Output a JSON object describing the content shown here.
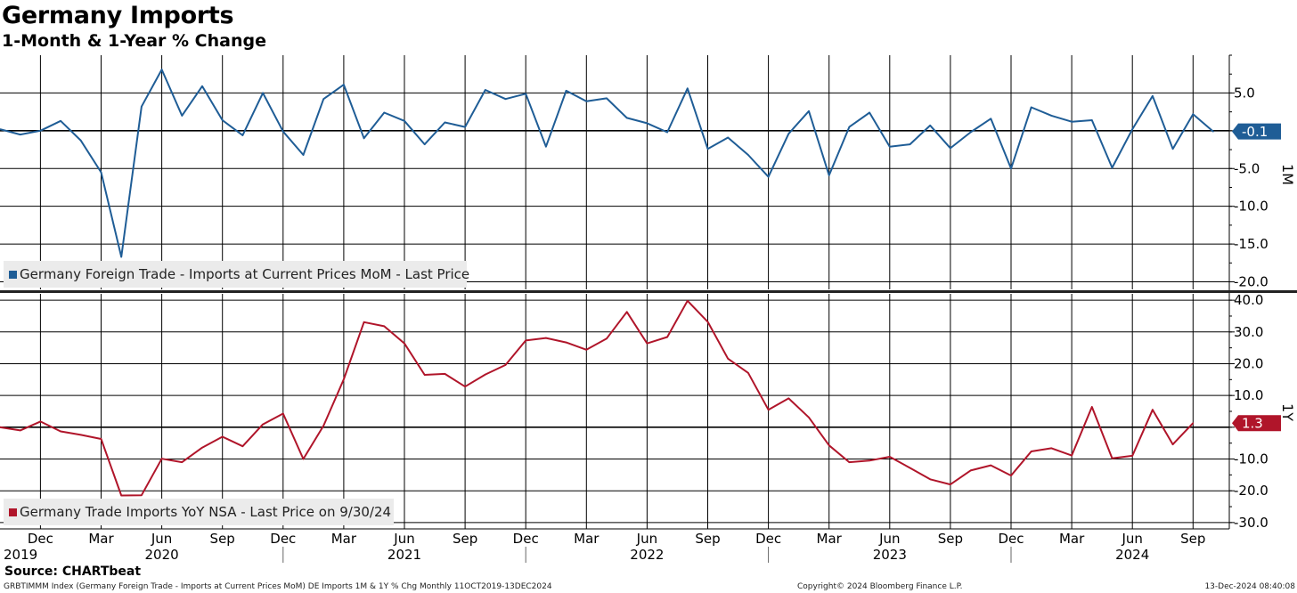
{
  "header": {
    "title": "Germany Imports",
    "subtitle": "1-Month & 1-Year % Change",
    "source": "Source: CHARTbeat"
  },
  "footer": {
    "left": "GRBTIMMM Index (Germany Foreign Trade - Imports at Current Prices MoM) DE Imports 1M & 1Y % Chg  Monthly 11OCT2019-13DEC2024",
    "middle": "Copyright© 2024 Bloomberg Finance L.P.",
    "right": "13-Dec-2024 08:40:08"
  },
  "colors": {
    "mom": "#1f5d96",
    "yoy": "#b0152a",
    "grid": "#000000",
    "legend_bg": "#ebebeb"
  },
  "chart_data": [
    {
      "type": "line",
      "axis_name": "1M",
      "ylim": [
        -21,
        10
      ],
      "yticks": [
        5,
        0,
        -5,
        -10,
        -15,
        -20
      ],
      "ytick_labels": [
        "5.0",
        "",
        "-5.0",
        "-10.0",
        "-15.0",
        "-20.0"
      ],
      "last_value_label": "-0.1",
      "grid": true,
      "legend_position": "bottom-left",
      "series": [
        {
          "name": "Germany Foreign Trade - Imports at Current Prices MoM - Last Price",
          "x": [
            "2019-10",
            "2019-11",
            "2019-12",
            "2020-01",
            "2020-02",
            "2020-03",
            "2020-04",
            "2020-05",
            "2020-06",
            "2020-07",
            "2020-08",
            "2020-09",
            "2020-10",
            "2020-11",
            "2020-12",
            "2021-01",
            "2021-02",
            "2021-03",
            "2021-04",
            "2021-05",
            "2021-06",
            "2021-07",
            "2021-08",
            "2021-09",
            "2021-10",
            "2021-11",
            "2021-12",
            "2022-01",
            "2022-02",
            "2022-03",
            "2022-04",
            "2022-05",
            "2022-06",
            "2022-07",
            "2022-08",
            "2022-09",
            "2022-10",
            "2022-11",
            "2022-12",
            "2023-01",
            "2023-02",
            "2023-03",
            "2023-04",
            "2023-05",
            "2023-06",
            "2023-07",
            "2023-08",
            "2023-09",
            "2023-10",
            "2023-11",
            "2023-12",
            "2024-01",
            "2024-02",
            "2024-03",
            "2024-04",
            "2024-05",
            "2024-06",
            "2024-07",
            "2024-08",
            "2024-09",
            "2024-10"
          ],
          "values": [
            0.2,
            -0.5,
            0.0,
            1.3,
            -1.3,
            -5.5,
            -16.7,
            3.2,
            8.1,
            2.0,
            5.9,
            1.4,
            -0.6,
            5.0,
            -0.1,
            -3.2,
            4.2,
            6.1,
            -1.0,
            2.4,
            1.3,
            -1.8,
            1.1,
            0.5,
            5.4,
            4.2,
            4.9,
            -2.1,
            5.3,
            3.9,
            4.3,
            1.7,
            1.0,
            -0.2,
            5.6,
            -2.4,
            -0.9,
            -3.2,
            -6.1,
            -0.4,
            2.6,
            -5.9,
            0.5,
            2.4,
            -2.1,
            -1.8,
            0.7,
            -2.3,
            -0.2,
            1.6,
            -5.0,
            3.1,
            2.0,
            1.2,
            1.4,
            -4.9,
            0.2,
            4.6,
            -2.4,
            2.2,
            -0.1
          ]
        }
      ]
    },
    {
      "type": "line",
      "axis_name": "1Y",
      "ylim": [
        -32,
        42
      ],
      "yticks": [
        40,
        30,
        20,
        10,
        0,
        -10,
        -20,
        -30
      ],
      "ytick_labels": [
        "40.0",
        "30.0",
        "20.0",
        "10.0",
        "",
        "-10.0",
        "-20.0",
        "-30.0"
      ],
      "last_value_label": "1.3",
      "grid": true,
      "legend_position": "bottom-left",
      "series": [
        {
          "name": "Germany Trade Imports YoY NSA - Last Price on 9/30/24",
          "x": [
            "2019-10",
            "2019-11",
            "2019-12",
            "2020-01",
            "2020-02",
            "2020-03",
            "2020-04",
            "2020-05",
            "2020-06",
            "2020-07",
            "2020-08",
            "2020-09",
            "2020-10",
            "2020-11",
            "2020-12",
            "2021-01",
            "2021-02",
            "2021-03",
            "2021-04",
            "2021-05",
            "2021-06",
            "2021-07",
            "2021-08",
            "2021-09",
            "2021-10",
            "2021-11",
            "2021-12",
            "2022-01",
            "2022-02",
            "2022-03",
            "2022-04",
            "2022-05",
            "2022-06",
            "2022-07",
            "2022-08",
            "2022-09",
            "2022-10",
            "2022-11",
            "2022-12",
            "2023-01",
            "2023-02",
            "2023-03",
            "2023-04",
            "2023-05",
            "2023-06",
            "2023-07",
            "2023-08",
            "2023-09",
            "2023-10",
            "2023-11",
            "2023-12",
            "2024-01",
            "2024-02",
            "2024-03",
            "2024-04",
            "2024-05",
            "2024-06",
            "2024-07",
            "2024-08",
            "2024-09"
          ],
          "values": [
            0.0,
            -1.0,
            1.8,
            -1.3,
            -2.4,
            -3.7,
            -21.5,
            -21.4,
            -9.9,
            -11.0,
            -6.4,
            -3.0,
            -6.0,
            0.9,
            4.3,
            -10.0,
            0.5,
            15.1,
            33.1,
            31.8,
            26.4,
            16.5,
            16.8,
            12.8,
            16.6,
            19.6,
            27.3,
            28.1,
            26.7,
            24.4,
            27.9,
            36.3,
            26.4,
            28.4,
            39.8,
            33.2,
            21.6,
            17.1,
            5.5,
            9.1,
            3.1,
            -5.7,
            -11.0,
            -10.5,
            -9.3,
            -12.8,
            -16.4,
            -18.0,
            -13.6,
            -12.0,
            -15.2,
            -7.6,
            -6.6,
            -8.9,
            6.4,
            -9.8,
            -9.0,
            5.5,
            -5.4,
            1.3
          ]
        }
      ]
    }
  ],
  "x_axis": {
    "months": [
      {
        "label": "Dec",
        "index": 2
      },
      {
        "label": "Mar",
        "index": 5
      },
      {
        "label": "Jun",
        "index": 8
      },
      {
        "label": "Sep",
        "index": 11
      },
      {
        "label": "Dec",
        "index": 14
      },
      {
        "label": "Mar",
        "index": 17
      },
      {
        "label": "Jun",
        "index": 20
      },
      {
        "label": "Sep",
        "index": 23
      },
      {
        "label": "Dec",
        "index": 26
      },
      {
        "label": "Mar",
        "index": 29
      },
      {
        "label": "Jun",
        "index": 32
      },
      {
        "label": "Sep",
        "index": 35
      },
      {
        "label": "Dec",
        "index": 38
      },
      {
        "label": "Mar",
        "index": 41
      },
      {
        "label": "Jun",
        "index": 44
      },
      {
        "label": "Sep",
        "index": 47
      },
      {
        "label": "Dec",
        "index": 50
      },
      {
        "label": "Mar",
        "index": 53
      },
      {
        "label": "Jun",
        "index": 56
      },
      {
        "label": "Sep",
        "index": 59
      }
    ],
    "years": [
      {
        "label": "2019",
        "index": 0.3
      },
      {
        "label": "2020",
        "index": 8
      },
      {
        "label": "2021",
        "index": 20
      },
      {
        "label": "2022",
        "index": 32
      },
      {
        "label": "2023",
        "index": 44
      },
      {
        "label": "2024",
        "index": 56
      }
    ]
  }
}
